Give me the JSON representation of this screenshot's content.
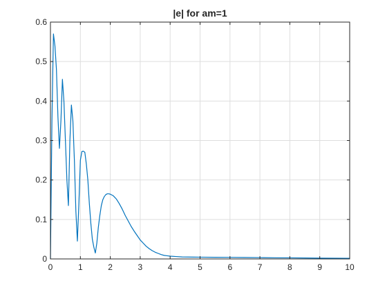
{
  "chart_data": {
    "type": "line",
    "title": "|e| for am=1",
    "xlabel": "",
    "ylabel": "",
    "xlim": [
      0,
      10
    ],
    "ylim": [
      0,
      0.6
    ],
    "grid": true,
    "legend": "none",
    "x_ticks": [
      0,
      1,
      2,
      3,
      4,
      5,
      6,
      7,
      8,
      9,
      10
    ],
    "x_tick_labels": [
      "0",
      "1",
      "2",
      "3",
      "4",
      "5",
      "6",
      "7",
      "8",
      "9",
      "10"
    ],
    "y_ticks": [
      0,
      0.1,
      0.2,
      0.3,
      0.4,
      0.5,
      0.6
    ],
    "y_tick_labels": [
      "0",
      "0.1",
      "0.2",
      "0.3",
      "0.4",
      "0.5",
      "0.6"
    ],
    "series": [
      {
        "color": "#0072bd",
        "x": [
          0,
          0.05,
          0.1,
          0.15,
          0.2,
          0.25,
          0.3,
          0.35,
          0.4,
          0.45,
          0.5,
          0.55,
          0.6,
          0.65,
          0.7,
          0.75,
          0.8,
          0.85,
          0.9,
          0.95,
          1.0,
          1.05,
          1.1,
          1.15,
          1.2,
          1.25,
          1.3,
          1.35,
          1.4,
          1.45,
          1.5,
          1.55,
          1.6,
          1.65,
          1.7,
          1.75,
          1.8,
          1.85,
          1.9,
          1.95,
          2.0,
          2.05,
          2.1,
          2.2,
          2.3,
          2.4,
          2.5,
          2.6,
          2.7,
          2.8,
          2.9,
          3.0,
          3.1,
          3.2,
          3.3,
          3.4,
          3.5,
          3.6,
          3.7,
          3.8,
          3.9,
          4.0,
          4.2,
          4.4,
          4.6,
          4.8,
          5.0,
          5.5,
          6.0,
          6.5,
          7.0,
          7.5,
          8.0,
          8.5,
          9.0,
          9.5,
          10.0
        ],
        "y": [
          0.0,
          0.35,
          0.57,
          0.54,
          0.48,
          0.36,
          0.28,
          0.35,
          0.455,
          0.4,
          0.3,
          0.2,
          0.135,
          0.3,
          0.39,
          0.35,
          0.25,
          0.12,
          0.045,
          0.14,
          0.25,
          0.272,
          0.273,
          0.27,
          0.24,
          0.2,
          0.14,
          0.09,
          0.05,
          0.03,
          0.015,
          0.04,
          0.08,
          0.11,
          0.135,
          0.15,
          0.158,
          0.163,
          0.165,
          0.165,
          0.164,
          0.162,
          0.16,
          0.152,
          0.14,
          0.126,
          0.11,
          0.096,
          0.082,
          0.07,
          0.059,
          0.048,
          0.04,
          0.032,
          0.026,
          0.021,
          0.017,
          0.014,
          0.011,
          0.009,
          0.008,
          0.007,
          0.006,
          0.005,
          0.0048,
          0.0046,
          0.0045,
          0.0042,
          0.004,
          0.0037,
          0.0034,
          0.003,
          0.0027,
          0.0024,
          0.002,
          0.0017,
          0.0015
        ]
      }
    ]
  }
}
